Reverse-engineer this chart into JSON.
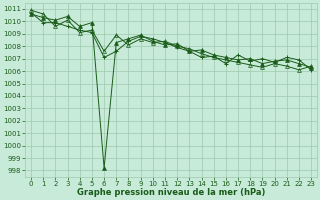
{
  "xlabel": "Graphe pression niveau de la mer (hPa)",
  "bg_color": "#c8ead8",
  "grid_color": "#9fc9af",
  "line_color": "#1a5c1a",
  "marker_color": "#1a5c1a",
  "ylim": [
    997.5,
    1011.5
  ],
  "xlim": [
    -0.5,
    23.5
  ],
  "yticks": [
    998,
    999,
    1000,
    1001,
    1002,
    1003,
    1004,
    1005,
    1006,
    1007,
    1008,
    1009,
    1010,
    1011
  ],
  "xticks": [
    0,
    1,
    2,
    3,
    4,
    5,
    6,
    7,
    8,
    9,
    10,
    11,
    12,
    13,
    14,
    15,
    16,
    17,
    18,
    19,
    20,
    21,
    22,
    23
  ],
  "series": [
    [
      1010.6,
      1010.3,
      1010.1,
      1010.4,
      1009.6,
      1009.9,
      998.2,
      1008.3,
      1008.6,
      1008.9,
      1008.4,
      1008.1,
      1008.2,
      1007.6,
      1007.7,
      1007.3,
      1007.1,
      1006.9,
      1007.0,
      1006.6,
      1006.8,
      1006.9,
      1006.6,
      1006.3
    ],
    [
      1010.9,
      1010.6,
      1009.6,
      1010.1,
      1009.1,
      1009.3,
      1007.6,
      1008.9,
      1008.1,
      1008.6,
      1008.3,
      1008.4,
      1008.0,
      1007.8,
      1007.4,
      1007.1,
      1006.9,
      1006.7,
      1006.5,
      1006.3,
      1006.6,
      1006.4,
      1006.1,
      1006.4
    ],
    [
      1010.7,
      1009.9,
      1009.9,
      1009.6,
      1009.3,
      1009.1,
      1007.1,
      1007.6,
      1008.4,
      1008.8,
      1008.6,
      1008.3,
      1007.9,
      1007.6,
      1007.1,
      1007.2,
      1006.6,
      1007.3,
      1006.8,
      1007.0,
      1006.7,
      1007.1,
      1006.9,
      1006.1
    ]
  ],
  "tick_labelsize": 5,
  "xlabel_fontsize": 6,
  "figsize": [
    3.2,
    2.0
  ],
  "dpi": 100
}
